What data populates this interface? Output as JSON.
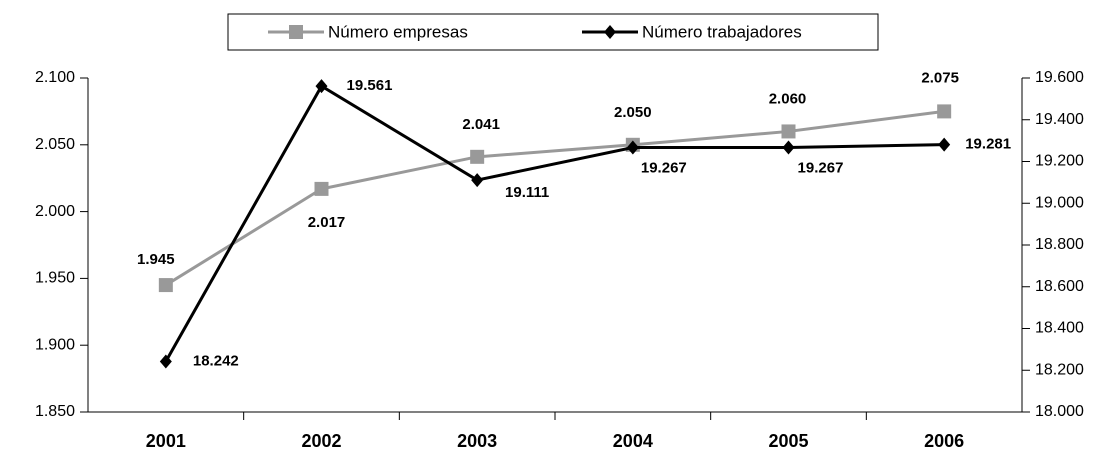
{
  "chart_data": {
    "type": "line",
    "categories": [
      "2001",
      "2002",
      "2003",
      "2004",
      "2005",
      "2006"
    ],
    "series": [
      {
        "name": "Número empresas",
        "color": "#999999",
        "values": [
          1945,
          2017,
          2041,
          2050,
          2060,
          2075
        ],
        "value_labels": [
          "1.945",
          "2.017",
          "2.041",
          "2.050",
          "2.060",
          "2.075"
        ]
      },
      {
        "name": "Número trabajadores",
        "color": "#000000",
        "axis": "y2",
        "values": [
          18242,
          19561,
          19111,
          19267,
          19267,
          19281
        ],
        "value_labels": [
          "18.242",
          "19.561",
          "19.111",
          "19.267",
          "19.267",
          "19.281"
        ]
      }
    ],
    "ylim": [
      1850,
      2100
    ],
    "yticks": [
      {
        "value": 1850,
        "label": "1.850"
      },
      {
        "value": 1900,
        "label": "1.900"
      },
      {
        "value": 1950,
        "label": "1.950"
      },
      {
        "value": 2000,
        "label": "2.000"
      },
      {
        "value": 2050,
        "label": "2.050"
      },
      {
        "value": 2100,
        "label": "2.100"
      }
    ],
    "y2lim": [
      18000,
      19600
    ],
    "y2ticks": [
      {
        "value": 18000,
        "label": "18.000"
      },
      {
        "value": 18200,
        "label": "18.200"
      },
      {
        "value": 18400,
        "label": "18.400"
      },
      {
        "value": 18600,
        "label": "18.600"
      },
      {
        "value": 18800,
        "label": "18.800"
      },
      {
        "value": 19000,
        "label": "19.000"
      },
      {
        "value": 19200,
        "label": "19.200"
      },
      {
        "value": 19400,
        "label": "19.400"
      },
      {
        "value": 19600,
        "label": "19.600"
      }
    ],
    "legend": "top"
  }
}
